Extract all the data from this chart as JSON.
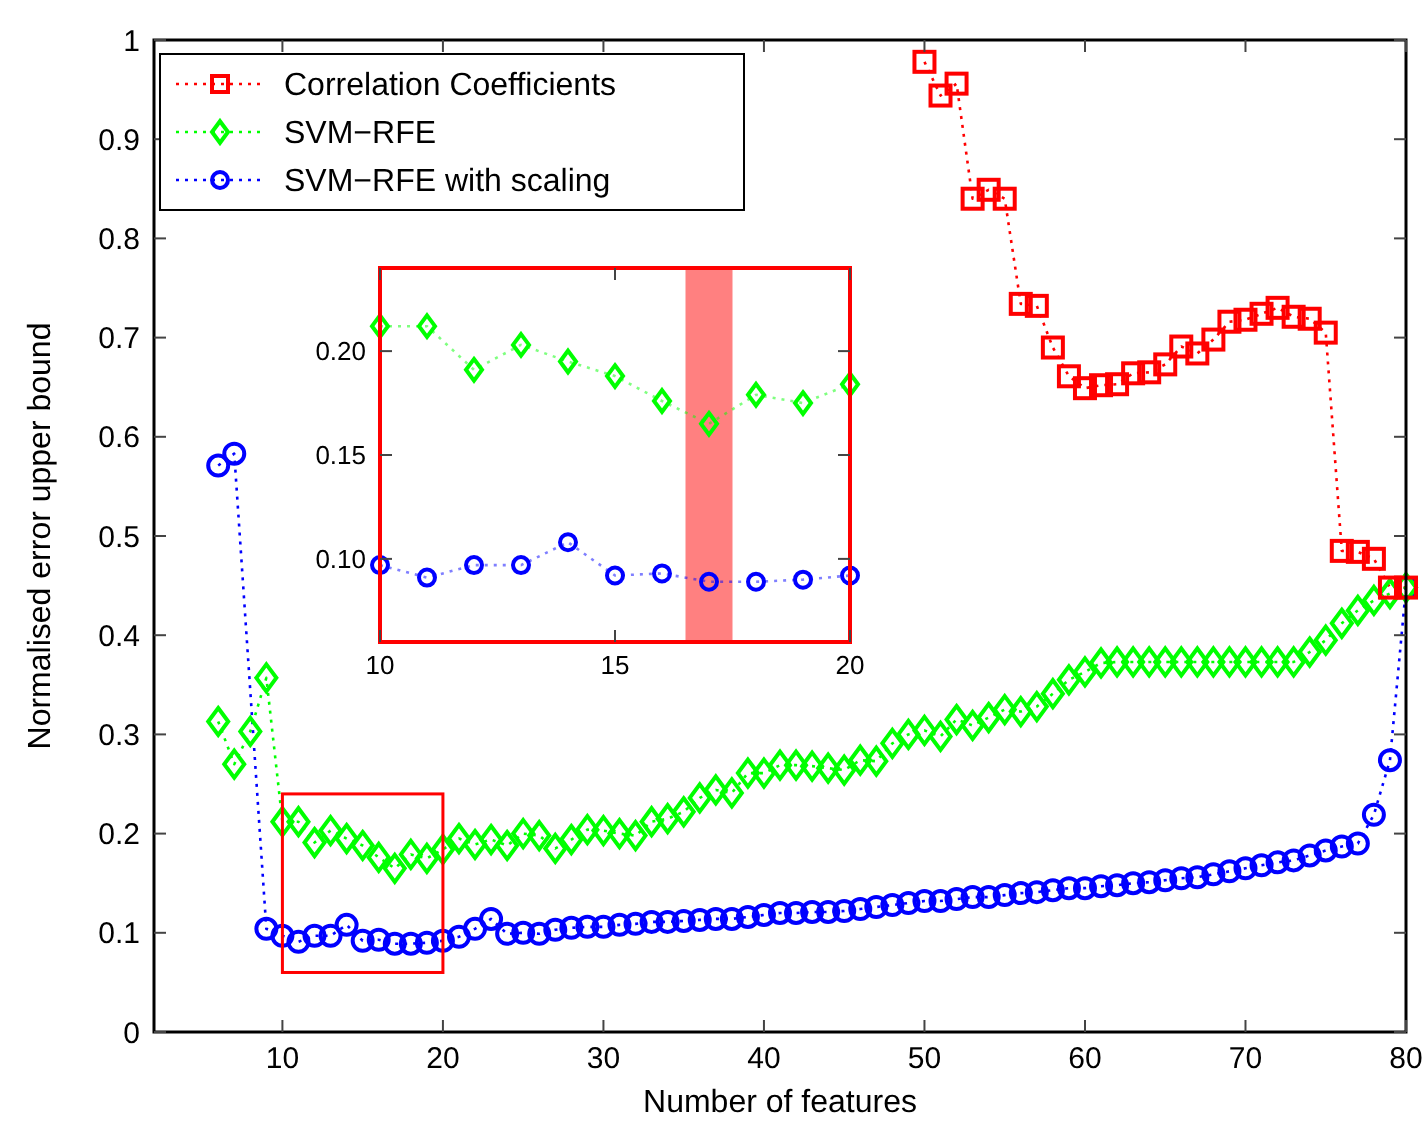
{
  "chart_data": [
    {
      "type": "line",
      "xlabel": "Number of features",
      "ylabel": "Normalised error upper bound",
      "xlim": [
        2,
        80
      ],
      "ylim": [
        0,
        1
      ],
      "xticks": [
        10,
        20,
        30,
        40,
        50,
        60,
        70,
        80
      ],
      "yticks": [
        0,
        0.1,
        0.2,
        0.3,
        0.4,
        0.5,
        0.6,
        0.7,
        0.8,
        0.9,
        1
      ],
      "legend": "top left",
      "line_style": "dotted",
      "grid": false,
      "series": [
        {
          "name": "Correlation Coefficients",
          "color": "#ff0000",
          "marker": "square",
          "x": [
            50,
            51,
            52,
            53,
            54,
            55,
            56,
            57,
            58,
            59,
            60,
            61,
            62,
            63,
            64,
            65,
            66,
            67,
            68,
            69,
            70,
            71,
            72,
            73,
            74,
            75,
            76,
            77,
            78,
            79,
            80
          ],
          "values": [
            0.978,
            0.944,
            0.956,
            0.84,
            0.849,
            0.84,
            0.734,
            0.732,
            0.69,
            0.661,
            0.649,
            0.652,
            0.653,
            0.664,
            0.665,
            0.673,
            0.691,
            0.684,
            0.698,
            0.716,
            0.718,
            0.724,
            0.73,
            0.721,
            0.719,
            0.705,
            0.485,
            0.484,
            0.477,
            0.448,
            0.448
          ]
        },
        {
          "name": "SVM−RFE",
          "color": "#00ff00",
          "marker": "diamond",
          "x": [
            6,
            7,
            8,
            9,
            10,
            11,
            12,
            13,
            14,
            15,
            16,
            17,
            18,
            19,
            20,
            21,
            22,
            23,
            24,
            25,
            26,
            27,
            28,
            29,
            30,
            31,
            32,
            33,
            34,
            35,
            36,
            37,
            38,
            39,
            40,
            41,
            42,
            43,
            44,
            45,
            46,
            47,
            48,
            49,
            50,
            51,
            52,
            53,
            54,
            55,
            56,
            57,
            58,
            59,
            60,
            61,
            62,
            63,
            64,
            65,
            66,
            67,
            68,
            69,
            70,
            71,
            72,
            73,
            74,
            75,
            76,
            77,
            78,
            79,
            80
          ],
          "values": [
            0.313,
            0.27,
            0.303,
            0.357,
            0.212,
            0.212,
            0.191,
            0.203,
            0.195,
            0.188,
            0.176,
            0.165,
            0.179,
            0.175,
            0.184,
            0.195,
            0.189,
            0.194,
            0.188,
            0.2,
            0.198,
            0.185,
            0.194,
            0.204,
            0.203,
            0.2,
            0.198,
            0.212,
            0.215,
            0.222,
            0.236,
            0.244,
            0.241,
            0.261,
            0.261,
            0.269,
            0.269,
            0.268,
            0.266,
            0.264,
            0.274,
            0.273,
            0.291,
            0.3,
            0.304,
            0.298,
            0.315,
            0.309,
            0.317,
            0.325,
            0.323,
            0.328,
            0.341,
            0.355,
            0.363,
            0.372,
            0.373,
            0.373,
            0.373,
            0.373,
            0.373,
            0.373,
            0.373,
            0.373,
            0.373,
            0.373,
            0.373,
            0.373,
            0.383,
            0.395,
            0.412,
            0.425,
            0.435,
            0.442,
            0.448
          ]
        },
        {
          "name": "SVM−RFE with scaling",
          "color": "#0000ff",
          "marker": "circle",
          "x": [
            6,
            7,
            9,
            10,
            11,
            12,
            13,
            14,
            15,
            16,
            17,
            18,
            19,
            20,
            21,
            22,
            23,
            24,
            25,
            26,
            27,
            28,
            29,
            30,
            31,
            32,
            33,
            34,
            35,
            36,
            37,
            38,
            39,
            40,
            41,
            42,
            43,
            44,
            45,
            46,
            47,
            48,
            49,
            50,
            51,
            52,
            53,
            54,
            55,
            56,
            57,
            58,
            59,
            60,
            61,
            62,
            63,
            64,
            65,
            66,
            67,
            68,
            69,
            70,
            71,
            72,
            73,
            74,
            75,
            76,
            77,
            78,
            79,
            80
          ],
          "values": [
            0.571,
            0.583,
            0.104,
            0.097,
            0.091,
            0.097,
            0.097,
            0.108,
            0.092,
            0.093,
            0.089,
            0.089,
            0.09,
            0.092,
            0.096,
            0.104,
            0.114,
            0.099,
            0.1,
            0.099,
            0.103,
            0.105,
            0.106,
            0.106,
            0.108,
            0.109,
            0.111,
            0.111,
            0.112,
            0.113,
            0.114,
            0.114,
            0.116,
            0.118,
            0.12,
            0.12,
            0.121,
            0.121,
            0.122,
            0.124,
            0.126,
            0.128,
            0.13,
            0.132,
            0.132,
            0.134,
            0.136,
            0.136,
            0.138,
            0.14,
            0.141,
            0.143,
            0.145,
            0.145,
            0.147,
            0.148,
            0.15,
            0.151,
            0.153,
            0.155,
            0.156,
            0.159,
            0.162,
            0.165,
            0.168,
            0.171,
            0.173,
            0.178,
            0.183,
            0.187,
            0.19,
            0.219,
            0.274,
            0.448
          ]
        }
      ]
    },
    {
      "type": "line",
      "xlim": [
        10,
        20
      ],
      "ylim": [
        0.06,
        0.24
      ],
      "xticks": [
        10,
        15,
        20
      ],
      "yticks": [
        {
          "value": 0.1,
          "label": "0.10"
        },
        {
          "value": 0.15,
          "label": "0.15"
        },
        {
          "value": 0.2,
          "label": "0.20"
        }
      ],
      "line_style": "dotted",
      "grid": false,
      "bands": [
        {
          "axis": "x",
          "from": 16.5,
          "to": 17.5,
          "color": "#ff8080"
        }
      ],
      "series": [
        {
          "color": "#00ff00",
          "marker": "diamond",
          "x": [
            10,
            11,
            12,
            13,
            14,
            15,
            16,
            17,
            18,
            19,
            20
          ],
          "values": [
            0.212,
            0.212,
            0.191,
            0.203,
            0.195,
            0.188,
            0.176,
            0.165,
            0.179,
            0.175,
            0.184
          ]
        },
        {
          "color": "#0000ff",
          "marker": "circle",
          "x": [
            10,
            11,
            12,
            13,
            14,
            15,
            16,
            17,
            18,
            19,
            20
          ],
          "values": [
            0.097,
            0.091,
            0.097,
            0.097,
            0.108,
            0.092,
            0.093,
            0.089,
            0.089,
            0.09,
            0.092
          ]
        }
      ]
    }
  ]
}
